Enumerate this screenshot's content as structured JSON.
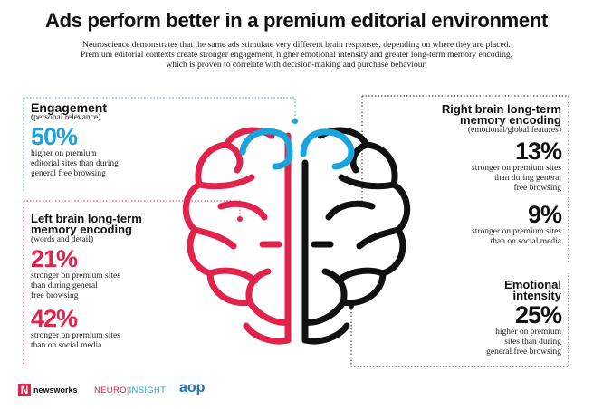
{
  "title": "Ads perform better in a premium editorial environment",
  "intro": [
    "Neuroscience demonstrates that the same ads stimulate very different brain responses, depending on where they are placed.",
    "Premium editorial contexts create stronger engagement, higher emotional intensity and greater long-term memory encoding,",
    "which is proven to correlate with decision-making and purchase behaviour."
  ],
  "engagement": {
    "heading": "Engagement",
    "sub": "(personal relevance)",
    "stat": "50%",
    "desc": [
      "higher on premium",
      "editorial sites than during",
      "general free browsing"
    ]
  },
  "left_brain": {
    "heading": [
      "Left brain long-term",
      "memory encoding"
    ],
    "sub": "(words and detail)",
    "stat1": "21%",
    "desc1": [
      "stronger on premium sites",
      "than during general",
      "free browsing"
    ],
    "stat2": "42%",
    "desc2": [
      "stronger on premium sites",
      "than on social media"
    ]
  },
  "right_brain": {
    "heading": [
      "Right brain long-term",
      "memory encoding"
    ],
    "sub": "(emotional/global features)",
    "stat1": "13%",
    "desc1": [
      "stronger on premium sites",
      "than during general",
      "free browsing"
    ],
    "stat2": "9%",
    "desc2": [
      "stronger on premium sites",
      "than on social media"
    ]
  },
  "emotional": {
    "heading": [
      "Emotional",
      "intensity"
    ],
    "stat": "25%",
    "desc": [
      "higher on premium",
      "sites than during",
      "general free browsing"
    ]
  },
  "logos": {
    "newsworks": "newsworks",
    "neuro": "NEURO",
    "insight": "INSIGHT",
    "aop": "aop"
  },
  "colors": {
    "blue": "#1aa3dd",
    "red": "#e2224a",
    "black": "#111111"
  }
}
